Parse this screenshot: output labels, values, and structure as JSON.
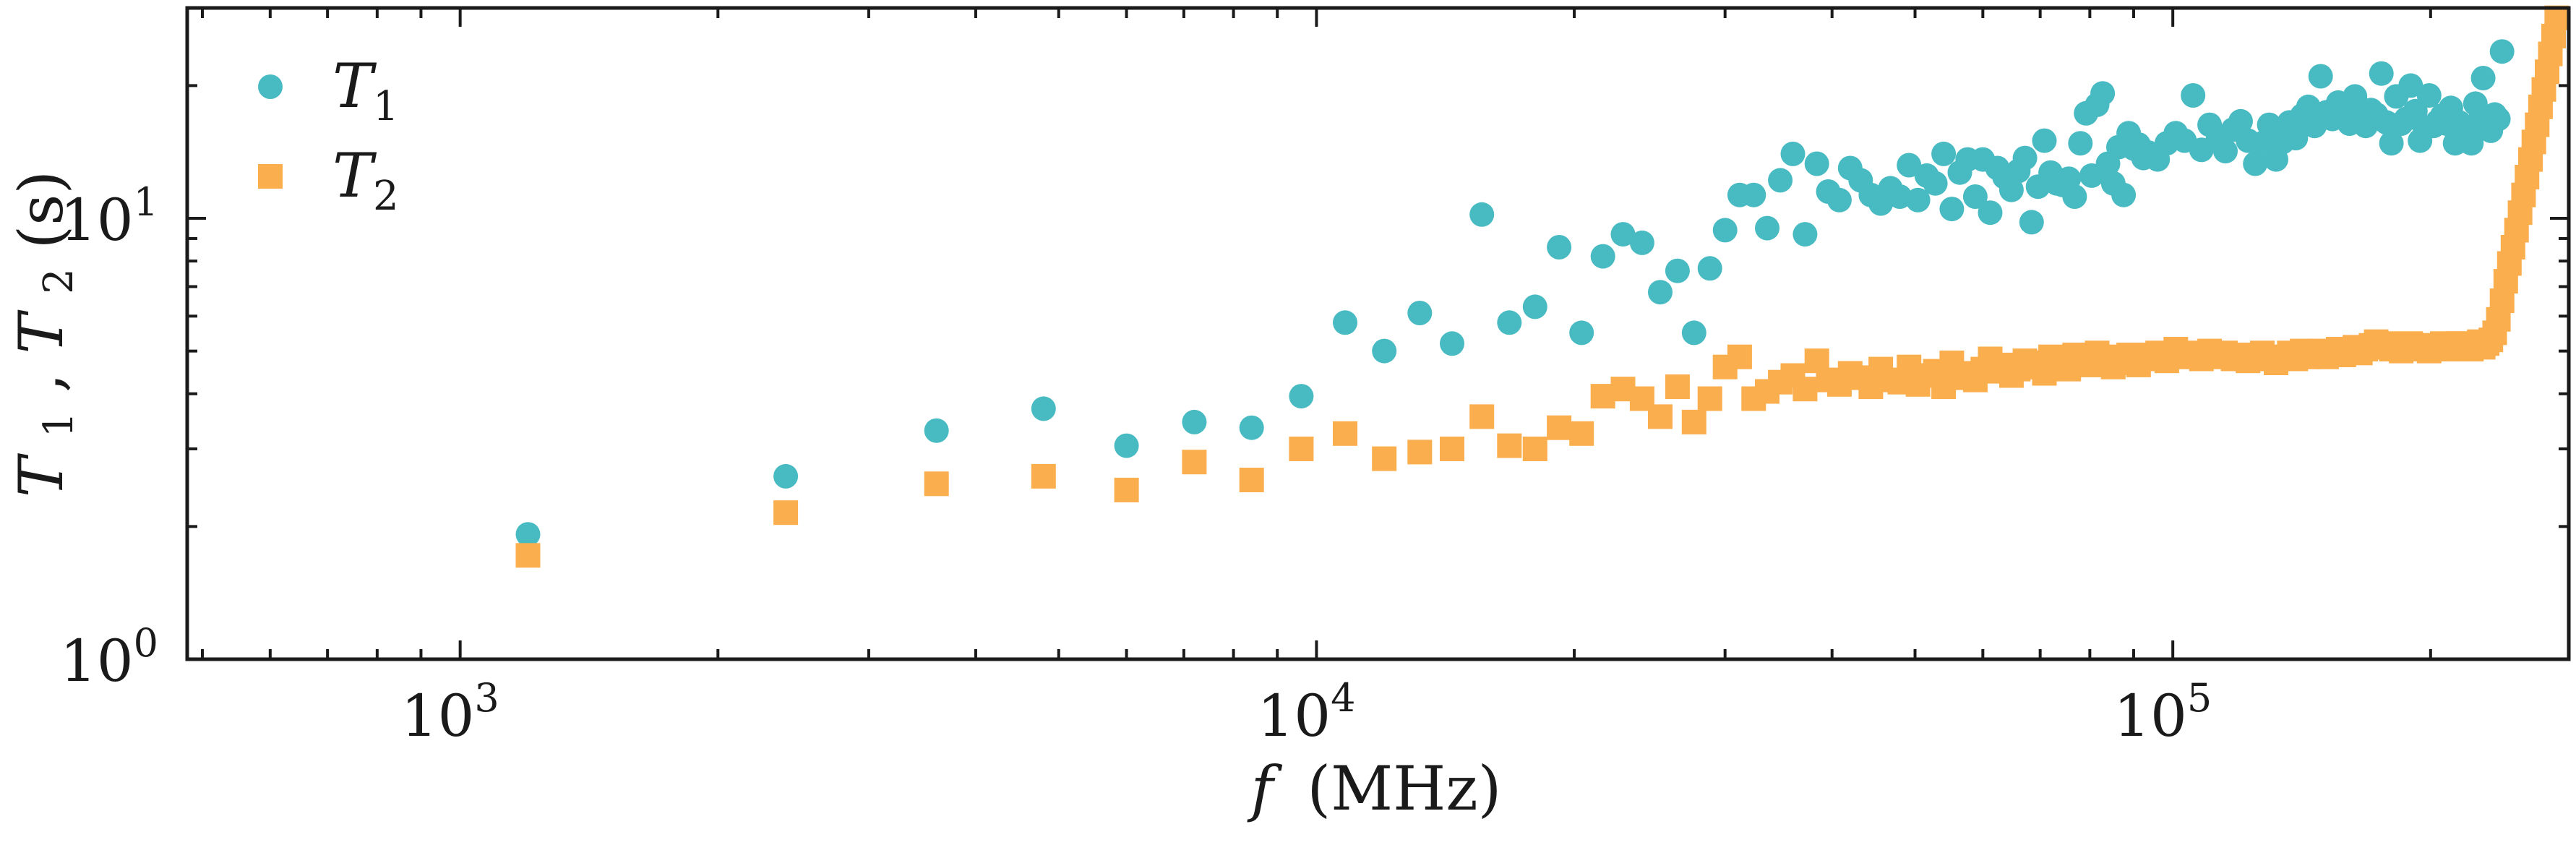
{
  "chart_data": {
    "type": "scatter",
    "x_scale": "log",
    "y_scale": "log",
    "xlim": [
      480,
      290000
    ],
    "ylim": [
      1,
      30
    ],
    "xlabel": {
      "var": "f",
      "unit": "(MHz)"
    },
    "ylabel": {
      "parts": [
        "T",
        "1",
        ", ",
        "T",
        "2",
        " (s)"
      ]
    },
    "x_ticks": [
      {
        "value": 1000,
        "base": "10",
        "exp": "3"
      },
      {
        "value": 10000,
        "base": "10",
        "exp": "4"
      },
      {
        "value": 100000,
        "base": "10",
        "exp": "5"
      }
    ],
    "y_ticks": [
      {
        "value": 1,
        "base": "10",
        "exp": "0"
      },
      {
        "value": 10,
        "base": "10",
        "exp": "1"
      }
    ],
    "legend_position": "top-left",
    "grid": false,
    "series": [
      {
        "name": "T1",
        "label_main": "T",
        "label_sub": "1",
        "marker": "circle",
        "color": "#48bac2",
        "points": [
          [
            1200,
            1.92
          ],
          [
            2400,
            2.6
          ],
          [
            3600,
            3.3
          ],
          [
            4800,
            3.7
          ],
          [
            6000,
            3.05
          ],
          [
            7200,
            3.45
          ],
          [
            8400,
            3.35
          ],
          [
            9600,
            3.95
          ],
          [
            10800,
            5.8
          ],
          [
            12000,
            5.0
          ],
          [
            13200,
            6.1
          ],
          [
            14400,
            5.2
          ],
          [
            15600,
            10.2
          ],
          [
            16800,
            5.8
          ],
          [
            18000,
            6.3
          ],
          [
            19200,
            8.6
          ],
          [
            20400,
            5.5
          ],
          [
            21600,
            8.2
          ],
          [
            22800,
            9.2
          ],
          [
            24000,
            8.8
          ],
          [
            25200,
            6.8
          ],
          [
            26400,
            7.6
          ],
          [
            27600,
            5.5
          ],
          [
            28800,
            7.7
          ],
          [
            30000,
            9.4
          ],
          [
            31200,
            11.3
          ],
          [
            32400,
            11.3
          ],
          [
            33600,
            9.5
          ],
          [
            34800,
            12.2
          ],
          [
            36000,
            14.0
          ],
          [
            37200,
            9.2
          ],
          [
            38400,
            13.3
          ],
          [
            39600,
            11.5
          ],
          [
            40800,
            11.0
          ],
          [
            42000,
            13.0
          ],
          [
            43200,
            12.2
          ],
          [
            44400,
            11.3
          ],
          [
            45600,
            10.8
          ],
          [
            46800,
            11.7
          ],
          [
            48000,
            11.2
          ],
          [
            49200,
            13.2
          ],
          [
            50400,
            11.0
          ],
          [
            51600,
            12.5
          ],
          [
            52800,
            12.0
          ],
          [
            54000,
            14.0
          ],
          [
            55200,
            10.5
          ],
          [
            56400,
            12.7
          ],
          [
            57600,
            13.6
          ],
          [
            58800,
            11.2
          ],
          [
            60000,
            13.6
          ],
          [
            61200,
            10.3
          ],
          [
            62400,
            13.0
          ],
          [
            63600,
            12.4
          ],
          [
            64800,
            11.6
          ],
          [
            66000,
            12.8
          ],
          [
            67200,
            13.7
          ],
          [
            68400,
            9.8
          ],
          [
            69600,
            11.8
          ],
          [
            70800,
            15.0
          ],
          [
            72000,
            12.7
          ],
          [
            73200,
            12.0
          ],
          [
            74400,
            11.9
          ],
          [
            75600,
            12.3
          ],
          [
            76800,
            11.2
          ],
          [
            78000,
            14.8
          ],
          [
            79200,
            17.3
          ],
          [
            80400,
            12.5
          ],
          [
            81600,
            18.1
          ],
          [
            82800,
            19.2
          ],
          [
            84000,
            13.3
          ],
          [
            85200,
            12.0
          ],
          [
            86400,
            14.5
          ],
          [
            87600,
            11.3
          ],
          [
            88800,
            15.6
          ],
          [
            90000,
            14.4
          ],
          [
            91200,
            14.7
          ],
          [
            92400,
            13.7
          ],
          [
            93600,
            14.1
          ],
          [
            96000,
            13.6
          ],
          [
            98400,
            14.8
          ],
          [
            100800,
            15.6
          ],
          [
            103200,
            15.0
          ],
          [
            105600,
            19.0
          ],
          [
            108000,
            14.3
          ],
          [
            110400,
            16.3
          ],
          [
            112800,
            15.0
          ],
          [
            115200,
            14.2
          ],
          [
            117600,
            15.9
          ],
          [
            120000,
            16.6
          ],
          [
            122400,
            15.0
          ],
          [
            124800,
            13.3
          ],
          [
            127200,
            14.8
          ],
          [
            129600,
            16.3
          ],
          [
            132000,
            13.6
          ],
          [
            134400,
            14.9
          ],
          [
            136800,
            16.5
          ],
          [
            139200,
            15.2
          ],
          [
            141600,
            17.1
          ],
          [
            144000,
            17.9
          ],
          [
            146400,
            16.2
          ],
          [
            148800,
            21.0
          ],
          [
            151200,
            17.4
          ],
          [
            153600,
            16.8
          ],
          [
            156000,
            18.3
          ],
          [
            158400,
            17.5
          ],
          [
            160800,
            16.4
          ],
          [
            163200,
            18.9
          ],
          [
            165600,
            17.0
          ],
          [
            168000,
            16.2
          ],
          [
            170400,
            17.6
          ],
          [
            172800,
            17.2
          ],
          [
            175200,
            21.3
          ],
          [
            177600,
            16.5
          ],
          [
            180000,
            14.8
          ],
          [
            182400,
            18.9
          ],
          [
            184800,
            16.4
          ],
          [
            187200,
            16.8
          ],
          [
            189600,
            20.0
          ],
          [
            192000,
            17.5
          ],
          [
            194400,
            15.0
          ],
          [
            196800,
            16.1
          ],
          [
            199200,
            19.0
          ],
          [
            201600,
            16.2
          ],
          [
            204000,
            16.6
          ],
          [
            206400,
            17.1
          ],
          [
            208800,
            16.4
          ],
          [
            211200,
            17.8
          ],
          [
            213600,
            14.8
          ],
          [
            216000,
            16.5
          ],
          [
            218400,
            15.0
          ],
          [
            220800,
            15.5
          ],
          [
            223200,
            14.8
          ],
          [
            225600,
            18.2
          ],
          [
            228000,
            16.6
          ],
          [
            230400,
            20.8
          ],
          [
            232800,
            16.1
          ],
          [
            235200,
            15.8
          ],
          [
            237600,
            17.2
          ],
          [
            240000,
            16.8
          ],
          [
            242400,
            23.9
          ]
        ]
      },
      {
        "name": "T2",
        "label_main": "T",
        "label_sub": "2",
        "marker": "square",
        "color": "#fbae4d",
        "points": [
          [
            1200,
            1.72
          ],
          [
            2400,
            2.15
          ],
          [
            3600,
            2.5
          ],
          [
            4800,
            2.6
          ],
          [
            6000,
            2.42
          ],
          [
            7200,
            2.8
          ],
          [
            8400,
            2.55
          ],
          [
            9600,
            3.0
          ],
          [
            10800,
            3.25
          ],
          [
            12000,
            2.85
          ],
          [
            13200,
            2.95
          ],
          [
            14400,
            3.0
          ],
          [
            15600,
            3.55
          ],
          [
            16800,
            3.05
          ],
          [
            18000,
            3.0
          ],
          [
            19200,
            3.35
          ],
          [
            20400,
            3.25
          ],
          [
            21600,
            3.95
          ],
          [
            22800,
            4.1
          ],
          [
            24000,
            3.9
          ],
          [
            25200,
            3.55
          ],
          [
            26400,
            4.15
          ],
          [
            27600,
            3.45
          ],
          [
            28800,
            3.9
          ],
          [
            30000,
            4.6
          ],
          [
            31200,
            4.85
          ],
          [
            32400,
            3.9
          ],
          [
            33600,
            4.05
          ],
          [
            34800,
            4.25
          ],
          [
            36000,
            4.4
          ],
          [
            37200,
            4.1
          ],
          [
            38400,
            4.75
          ],
          [
            39600,
            4.3
          ],
          [
            40800,
            4.2
          ],
          [
            42000,
            4.45
          ],
          [
            43200,
            4.35
          ],
          [
            44400,
            4.15
          ],
          [
            45600,
            4.55
          ],
          [
            46800,
            4.3
          ],
          [
            48000,
            4.25
          ],
          [
            49200,
            4.6
          ],
          [
            50400,
            4.2
          ],
          [
            51600,
            4.4
          ],
          [
            52800,
            4.5
          ],
          [
            54000,
            4.15
          ],
          [
            55200,
            4.7
          ],
          [
            56400,
            4.35
          ],
          [
            57600,
            4.45
          ],
          [
            58800,
            4.3
          ],
          [
            60000,
            4.55
          ],
          [
            61200,
            4.8
          ],
          [
            62400,
            4.5
          ],
          [
            63600,
            4.65
          ],
          [
            64800,
            4.4
          ],
          [
            66000,
            4.55
          ],
          [
            67200,
            4.75
          ],
          [
            68400,
            4.6
          ],
          [
            69600,
            4.7
          ],
          [
            70800,
            4.45
          ],
          [
            72000,
            4.85
          ],
          [
            73200,
            4.6
          ],
          [
            74400,
            4.75
          ],
          [
            75600,
            4.55
          ],
          [
            76800,
            4.9
          ],
          [
            78000,
            4.7
          ],
          [
            79200,
            4.8
          ],
          [
            80400,
            4.65
          ],
          [
            81600,
            4.95
          ],
          [
            82800,
            4.75
          ],
          [
            84000,
            4.8
          ],
          [
            85200,
            4.6
          ],
          [
            86400,
            4.85
          ],
          [
            87600,
            4.7
          ],
          [
            88800,
            4.9
          ],
          [
            90000,
            4.75
          ],
          [
            91200,
            4.65
          ],
          [
            92400,
            4.9
          ],
          [
            93600,
            4.8
          ],
          [
            96000,
            4.95
          ],
          [
            98400,
            4.75
          ],
          [
            100800,
            5.05
          ],
          [
            103200,
            4.85
          ],
          [
            105600,
            4.95
          ],
          [
            108000,
            4.8
          ],
          [
            110400,
            5.0
          ],
          [
            112800,
            4.85
          ],
          [
            115200,
            4.95
          ],
          [
            117600,
            4.8
          ],
          [
            120000,
            4.9
          ],
          [
            122400,
            4.75
          ],
          [
            124800,
            4.85
          ],
          [
            127200,
            4.95
          ],
          [
            129600,
            4.8
          ],
          [
            132000,
            4.7
          ],
          [
            134400,
            4.85
          ],
          [
            136800,
            4.95
          ],
          [
            139200,
            4.8
          ],
          [
            141600,
            5.0
          ],
          [
            144000,
            4.85
          ],
          [
            146400,
            4.9
          ],
          [
            148800,
            5.0
          ],
          [
            151200,
            4.85
          ],
          [
            153600,
            4.95
          ],
          [
            156000,
            5.05
          ],
          [
            158400,
            4.9
          ],
          [
            160800,
            5.0
          ],
          [
            163200,
            5.1
          ],
          [
            165600,
            4.95
          ],
          [
            168000,
            5.05
          ],
          [
            170400,
            5.15
          ],
          [
            172800,
            5.25
          ],
          [
            175200,
            5.1
          ],
          [
            177600,
            5.2
          ],
          [
            180000,
            5.05
          ],
          [
            182400,
            5.15
          ],
          [
            184800,
            5.0
          ],
          [
            187200,
            5.1
          ],
          [
            189600,
            5.2
          ],
          [
            192000,
            5.05
          ],
          [
            194400,
            5.15
          ],
          [
            196800,
            5.1
          ],
          [
            199200,
            5.0
          ],
          [
            201600,
            5.15
          ],
          [
            204000,
            5.05
          ],
          [
            206400,
            5.2
          ],
          [
            208800,
            5.1
          ],
          [
            211200,
            5.15
          ],
          [
            213600,
            5.05
          ],
          [
            216000,
            5.2
          ],
          [
            218400,
            5.1
          ],
          [
            220800,
            5.2
          ],
          [
            223200,
            5.05
          ],
          [
            225600,
            5.15
          ],
          [
            228000,
            5.25
          ],
          [
            230400,
            5.1
          ],
          [
            232800,
            5.2
          ],
          [
            235200,
            5.3
          ],
          [
            237600,
            5.5
          ],
          [
            240000,
            5.9
          ],
          [
            242400,
            6.5
          ],
          [
            244800,
            7.2
          ],
          [
            247200,
            7.9
          ],
          [
            249600,
            8.6
          ],
          [
            252000,
            9.4
          ],
          [
            254400,
            10.3
          ],
          [
            256800,
            11.3
          ],
          [
            259200,
            12.4
          ],
          [
            261600,
            13.6
          ],
          [
            264000,
            14.9
          ],
          [
            266400,
            16.3
          ],
          [
            268800,
            17.9
          ],
          [
            271200,
            19.6
          ],
          [
            273600,
            21.5
          ],
          [
            276000,
            23.6
          ],
          [
            278400,
            25.9
          ],
          [
            280800,
            28.5
          ]
        ]
      }
    ]
  }
}
